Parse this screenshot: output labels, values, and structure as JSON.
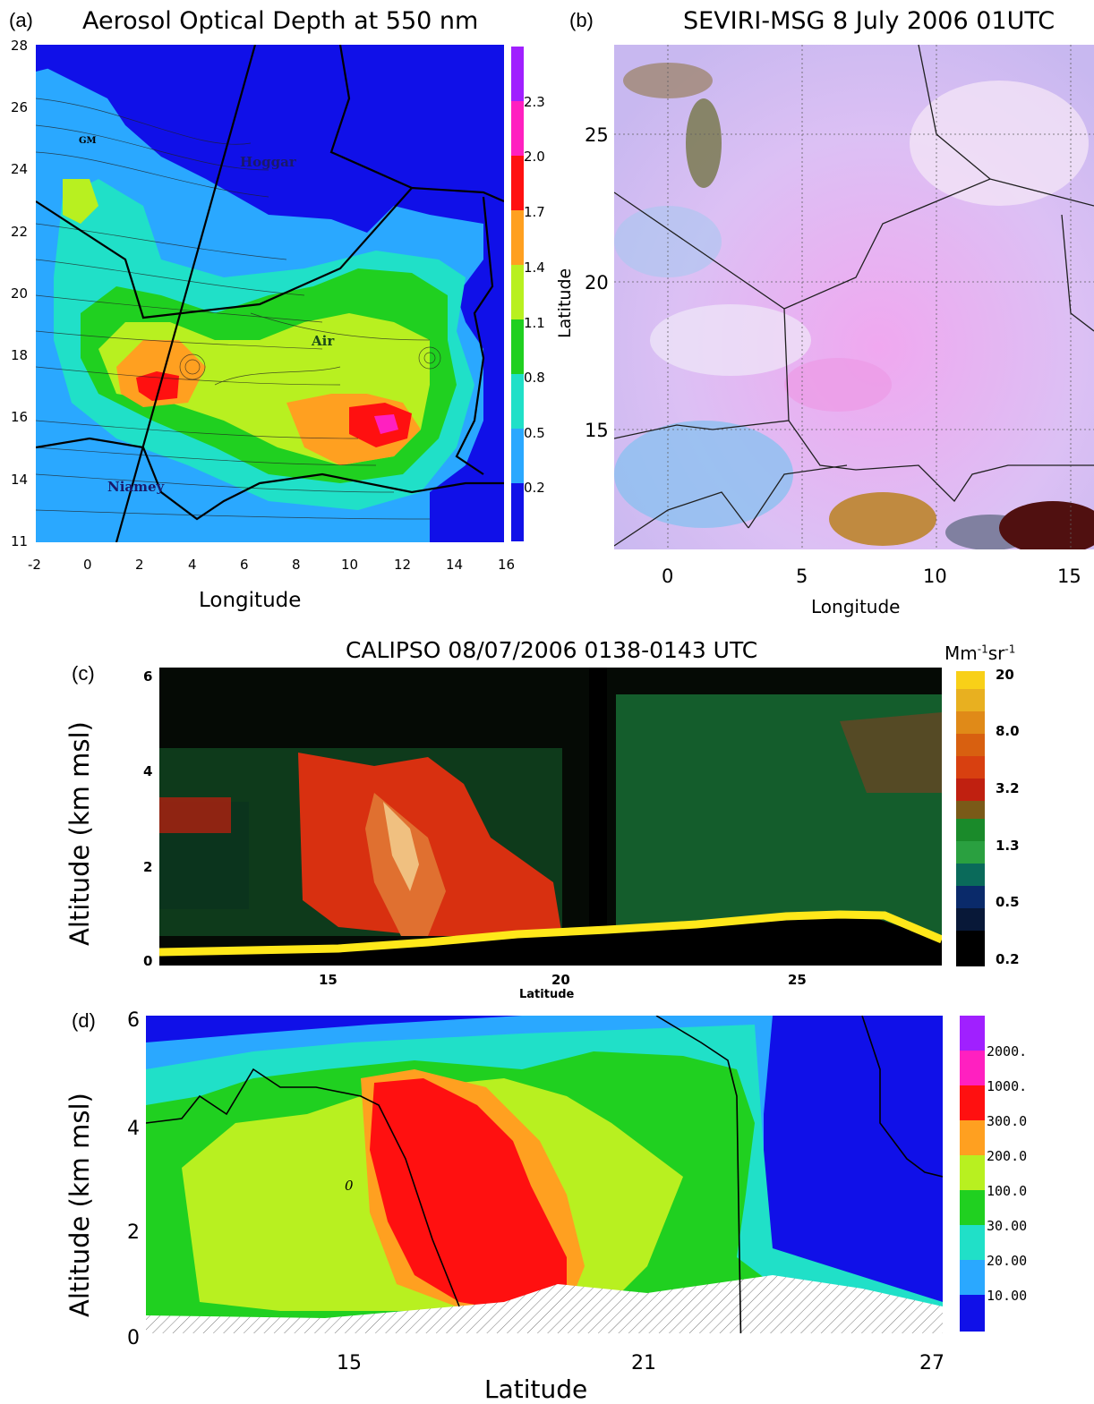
{
  "panels": {
    "a": {
      "letter": "(a)",
      "title": "Aerosol Optical Depth at 550 nm",
      "xlabel": "Longitude",
      "xticks": [
        "-2",
        "0",
        "2",
        "4",
        "6",
        "8",
        "10",
        "12",
        "14",
        "16"
      ],
      "yticks": [
        "28",
        "26",
        "24",
        "22",
        "20",
        "18",
        "16",
        "14",
        "11"
      ],
      "colorbar_ticks": [
        "2.3",
        "2.0",
        "1.7",
        "1.4",
        "1.1",
        "0.8",
        "0.5",
        "0.2"
      ],
      "place_labels": [
        "Hoggar",
        "Air",
        "Niamey",
        "GM"
      ],
      "colors": [
        "#1010e8",
        "#2aa8ff",
        "#20e0c8",
        "#20d020",
        "#b8f020",
        "#ffa020",
        "#ff1010",
        "#ff20c0",
        "#a020ff"
      ]
    },
    "b": {
      "letter": "(b)",
      "title": "SEVIRI-MSG 8 July 2006 01UTC",
      "xlabel": "Longitude",
      "ylabel": "Latitude",
      "xticks": [
        "0",
        "5",
        "10",
        "15"
      ],
      "yticks": [
        "25",
        "20",
        "15"
      ]
    },
    "c": {
      "letter": "(c)",
      "title": "CALIPSO 08/07/2006 0138-0143 UTC",
      "xlabel": "Latitude",
      "ylabel": "Altitude (km msl)",
      "units": "Mm-1sr-1",
      "units_base": "Mm",
      "units_sup1": "-1",
      "units_mid": "sr",
      "units_sup2": "-1",
      "xticks": [
        "15",
        "20",
        "25"
      ],
      "yticks": [
        "6",
        "4",
        "2",
        "0"
      ],
      "colorbar_ticks": [
        "20",
        "8.0",
        "3.2",
        "1.3",
        "0.5",
        "0.2"
      ]
    },
    "d": {
      "letter": "(d)",
      "xlabel": "Latitude",
      "ylabel": "Altitude (km msl)",
      "xticks": [
        "15",
        "21",
        "27"
      ],
      "yticks": [
        "6",
        "4",
        "2",
        "0"
      ],
      "colorbar_ticks": [
        "2000.",
        "1000.",
        "300.0",
        "200.0",
        "100.0",
        "30.00",
        "20.00",
        "10.00"
      ],
      "contour_label": "0"
    }
  },
  "chart_data": [
    {
      "type": "heatmap",
      "title": "Aerosol Optical Depth at 550 nm",
      "xlabel": "Longitude",
      "ylabel": "",
      "xlim": [
        -2,
        16
      ],
      "ylim": [
        11,
        28
      ],
      "colorbar": [
        0.2,
        0.5,
        0.8,
        1.1,
        1.4,
        1.7,
        2.0,
        2.3
      ],
      "maxima": [
        {
          "lon": 3,
          "lat": 16.9,
          "value": 1.9
        },
        {
          "lon": 11.3,
          "lat": 15.8,
          "value": 2.1
        }
      ]
    },
    {
      "type": "heatmap",
      "title": "CALIPSO 08/07/2006 0138-0143 UTC",
      "xlabel": "Latitude",
      "ylabel": "Altitude (km msl)",
      "xlim": [
        11,
        28
      ],
      "ylim": [
        0,
        6
      ],
      "colorbar": [
        0.2,
        0.5,
        1.3,
        3.2,
        8.0,
        20
      ]
    },
    {
      "type": "heatmap",
      "title": "",
      "xlabel": "Latitude",
      "ylabel": "Altitude (km msl)",
      "xlim": [
        10.8,
        27.5
      ],
      "ylim": [
        0,
        6
      ],
      "colorbar": [
        10.0,
        20.0,
        30.0,
        100.0,
        200.0,
        300.0,
        1000.0,
        2000.0
      ]
    }
  ]
}
